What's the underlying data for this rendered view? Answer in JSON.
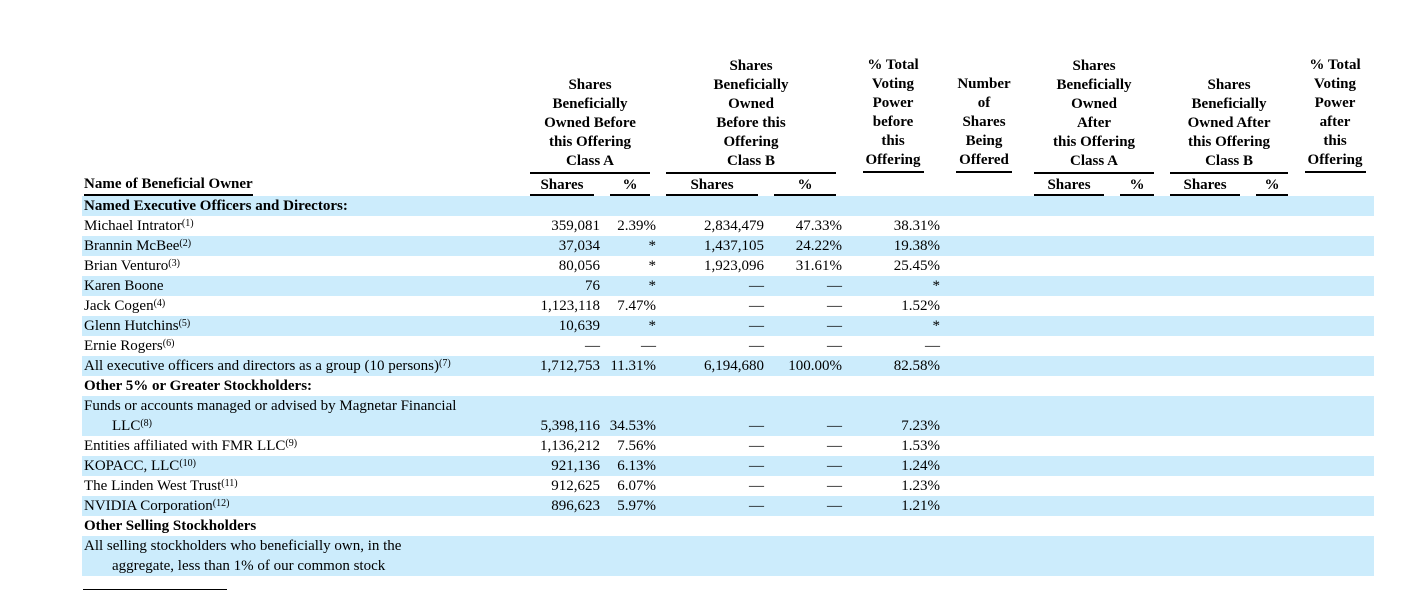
{
  "colors": {
    "row_highlight": "#CCECFC",
    "rule": "#000000",
    "text": "#000000"
  },
  "table": {
    "name_column_header": "Name of Beneficial Owner",
    "groups": [
      {
        "id": "class-a-before",
        "lines": [
          "Shares",
          "Beneficially",
          "Owned Before",
          "this Offering",
          "Class A"
        ],
        "subcols": [
          "Shares",
          "%"
        ]
      },
      {
        "id": "class-b-before",
        "lines": [
          "Shares",
          "Beneficially",
          "Owned",
          "Before this",
          "Offering",
          "Class B"
        ],
        "subcols": [
          "Shares",
          "%"
        ]
      },
      {
        "id": "voting-power-before",
        "lines": [
          "% Total",
          "Voting",
          "Power",
          "before",
          "this",
          "Offering"
        ]
      },
      {
        "id": "shares-being-offered",
        "lines": [
          "Number",
          "of",
          "Shares",
          "Being",
          "Offered"
        ]
      },
      {
        "id": "class-a-after",
        "lines": [
          "Shares",
          "Beneficially",
          "Owned",
          "After",
          "this Offering",
          "Class A"
        ],
        "subcols": [
          "Shares",
          "%"
        ]
      },
      {
        "id": "class-b-after",
        "lines": [
          "Shares",
          "Beneficially",
          "Owned After",
          "this Offering",
          "Class B"
        ],
        "subcols": [
          "Shares",
          "%"
        ]
      },
      {
        "id": "voting-power-after",
        "lines": [
          "% Total",
          "Voting",
          "Power",
          "after",
          "this",
          "Offering"
        ]
      }
    ],
    "rows": [
      {
        "label": "Named Executive Officers and Directors:",
        "bold": true,
        "shaded": true,
        "values": [
          "",
          "",
          "",
          "",
          "",
          "",
          "",
          "",
          "",
          "",
          ""
        ]
      },
      {
        "label": "Michael Intrator",
        "sup": "(1)",
        "values": [
          "359,081",
          "2.39%",
          "2,834,479",
          "47.33%",
          "38.31%",
          "",
          "",
          "",
          "",
          "",
          ""
        ]
      },
      {
        "label": "Brannin McBee",
        "sup": "(2)",
        "shaded": true,
        "values": [
          "37,034",
          "*",
          "1,437,105",
          "24.22%",
          "19.38%",
          "",
          "",
          "",
          "",
          "",
          ""
        ]
      },
      {
        "label": "Brian Venturo",
        "sup": "(3)",
        "values": [
          "80,056",
          "*",
          "1,923,096",
          "31.61%",
          "25.45%",
          "",
          "",
          "",
          "",
          "",
          ""
        ]
      },
      {
        "label": "Karen Boone",
        "shaded": true,
        "values": [
          "76",
          "*",
          "—",
          "—",
          "*",
          "",
          "",
          "",
          "",
          "",
          ""
        ]
      },
      {
        "label": "Jack Cogen",
        "sup": "(4)",
        "values": [
          "1,123,118",
          "7.47%",
          "—",
          "—",
          "1.52%",
          "",
          "",
          "",
          "",
          "",
          ""
        ]
      },
      {
        "label": "Glenn Hutchins",
        "sup": "(5)",
        "shaded": true,
        "values": [
          "10,639",
          "*",
          "—",
          "—",
          "*",
          "",
          "",
          "",
          "",
          "",
          ""
        ]
      },
      {
        "label": "Ernie Rogers",
        "sup": "(6)",
        "values": [
          "—",
          "—",
          "—",
          "—",
          "—",
          "",
          "",
          "",
          "",
          "",
          ""
        ]
      },
      {
        "label": "All executive officers and directors as a group (10 persons)",
        "sup": "(7)",
        "shaded": true,
        "values": [
          "1,712,753",
          "11.31%",
          "6,194,680",
          "100.00%",
          "82.58%",
          "",
          "",
          "",
          "",
          "",
          ""
        ]
      },
      {
        "label": "Other 5% or Greater Stockholders:",
        "bold": true,
        "values": [
          "",
          "",
          "",
          "",
          "",
          "",
          "",
          "",
          "",
          "",
          ""
        ]
      },
      {
        "label": "Funds or accounts managed or advised by Magnetar Financial",
        "shaded": true,
        "values": [
          "",
          "",
          "",
          "",
          "",
          "",
          "",
          "",
          "",
          "",
          ""
        ]
      },
      {
        "label": "LLC",
        "sup": "(8)",
        "indent": true,
        "shaded": true,
        "values": [
          "5,398,116",
          "34.53%",
          "—",
          "—",
          "7.23%",
          "",
          "",
          "",
          "",
          "",
          ""
        ]
      },
      {
        "label": "Entities affiliated with FMR LLC",
        "sup": "(9)",
        "values": [
          "1,136,212",
          "7.56%",
          "—",
          "—",
          "1.53%",
          "",
          "",
          "",
          "",
          "",
          ""
        ]
      },
      {
        "label": "KOPACC, LLC",
        "sup": "(10)",
        "shaded": true,
        "values": [
          "921,136",
          "6.13%",
          "—",
          "—",
          "1.24%",
          "",
          "",
          "",
          "",
          "",
          ""
        ]
      },
      {
        "label": "The Linden West Trust",
        "sup": "(11)",
        "values": [
          "912,625",
          "6.07%",
          "—",
          "—",
          "1.23%",
          "",
          "",
          "",
          "",
          "",
          ""
        ]
      },
      {
        "label": "NVIDIA Corporation",
        "sup": "(12)",
        "shaded": true,
        "values": [
          "896,623",
          "5.97%",
          "—",
          "—",
          "1.21%",
          "",
          "",
          "",
          "",
          "",
          ""
        ]
      },
      {
        "label": "Other Selling Stockholders",
        "bold": true,
        "values": [
          "",
          "",
          "",
          "",
          "",
          "",
          "",
          "",
          "",
          "",
          ""
        ]
      },
      {
        "label": "All selling stockholders who beneficially own, in the",
        "shaded": true,
        "values": [
          "",
          "",
          "",
          "",
          "",
          "",
          "",
          "",
          "",
          "",
          ""
        ]
      },
      {
        "label": "aggregate, less than 1% of our common stock",
        "indent": true,
        "shaded": true,
        "values": [
          "",
          "",
          "",
          "",
          "",
          "",
          "",
          "",
          "",
          "",
          ""
        ]
      }
    ]
  }
}
